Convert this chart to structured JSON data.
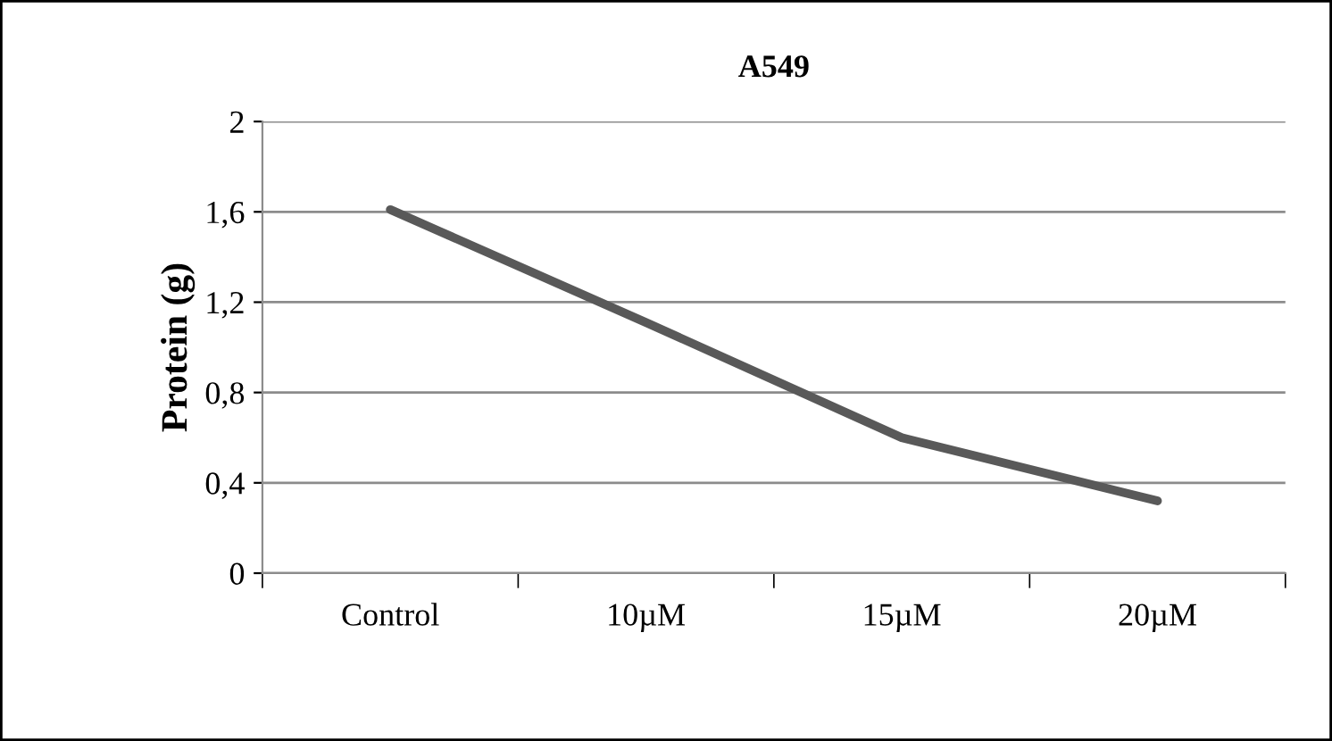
{
  "chart_data": {
    "type": "line",
    "title": "A549",
    "ylabel": "Protein (g)",
    "categories": [
      "Control",
      "10µM",
      "15µM",
      "20µM"
    ],
    "series": [
      {
        "color": "#595959",
        "values": [
          1.61,
          1.11,
          0.6,
          0.32
        ]
      }
    ],
    "ylim": [
      0,
      2
    ],
    "yticks": [
      0,
      {
        "value": 0.4,
        "label": "0,4"
      },
      {
        "value": 0.8,
        "label": "0,8"
      },
      {
        "value": 1.2,
        "label": "1,2"
      },
      {
        "value": 1.6,
        "label": "1,6"
      },
      2
    ],
    "grid": "y",
    "marker": "none",
    "line_style": "solid"
  }
}
